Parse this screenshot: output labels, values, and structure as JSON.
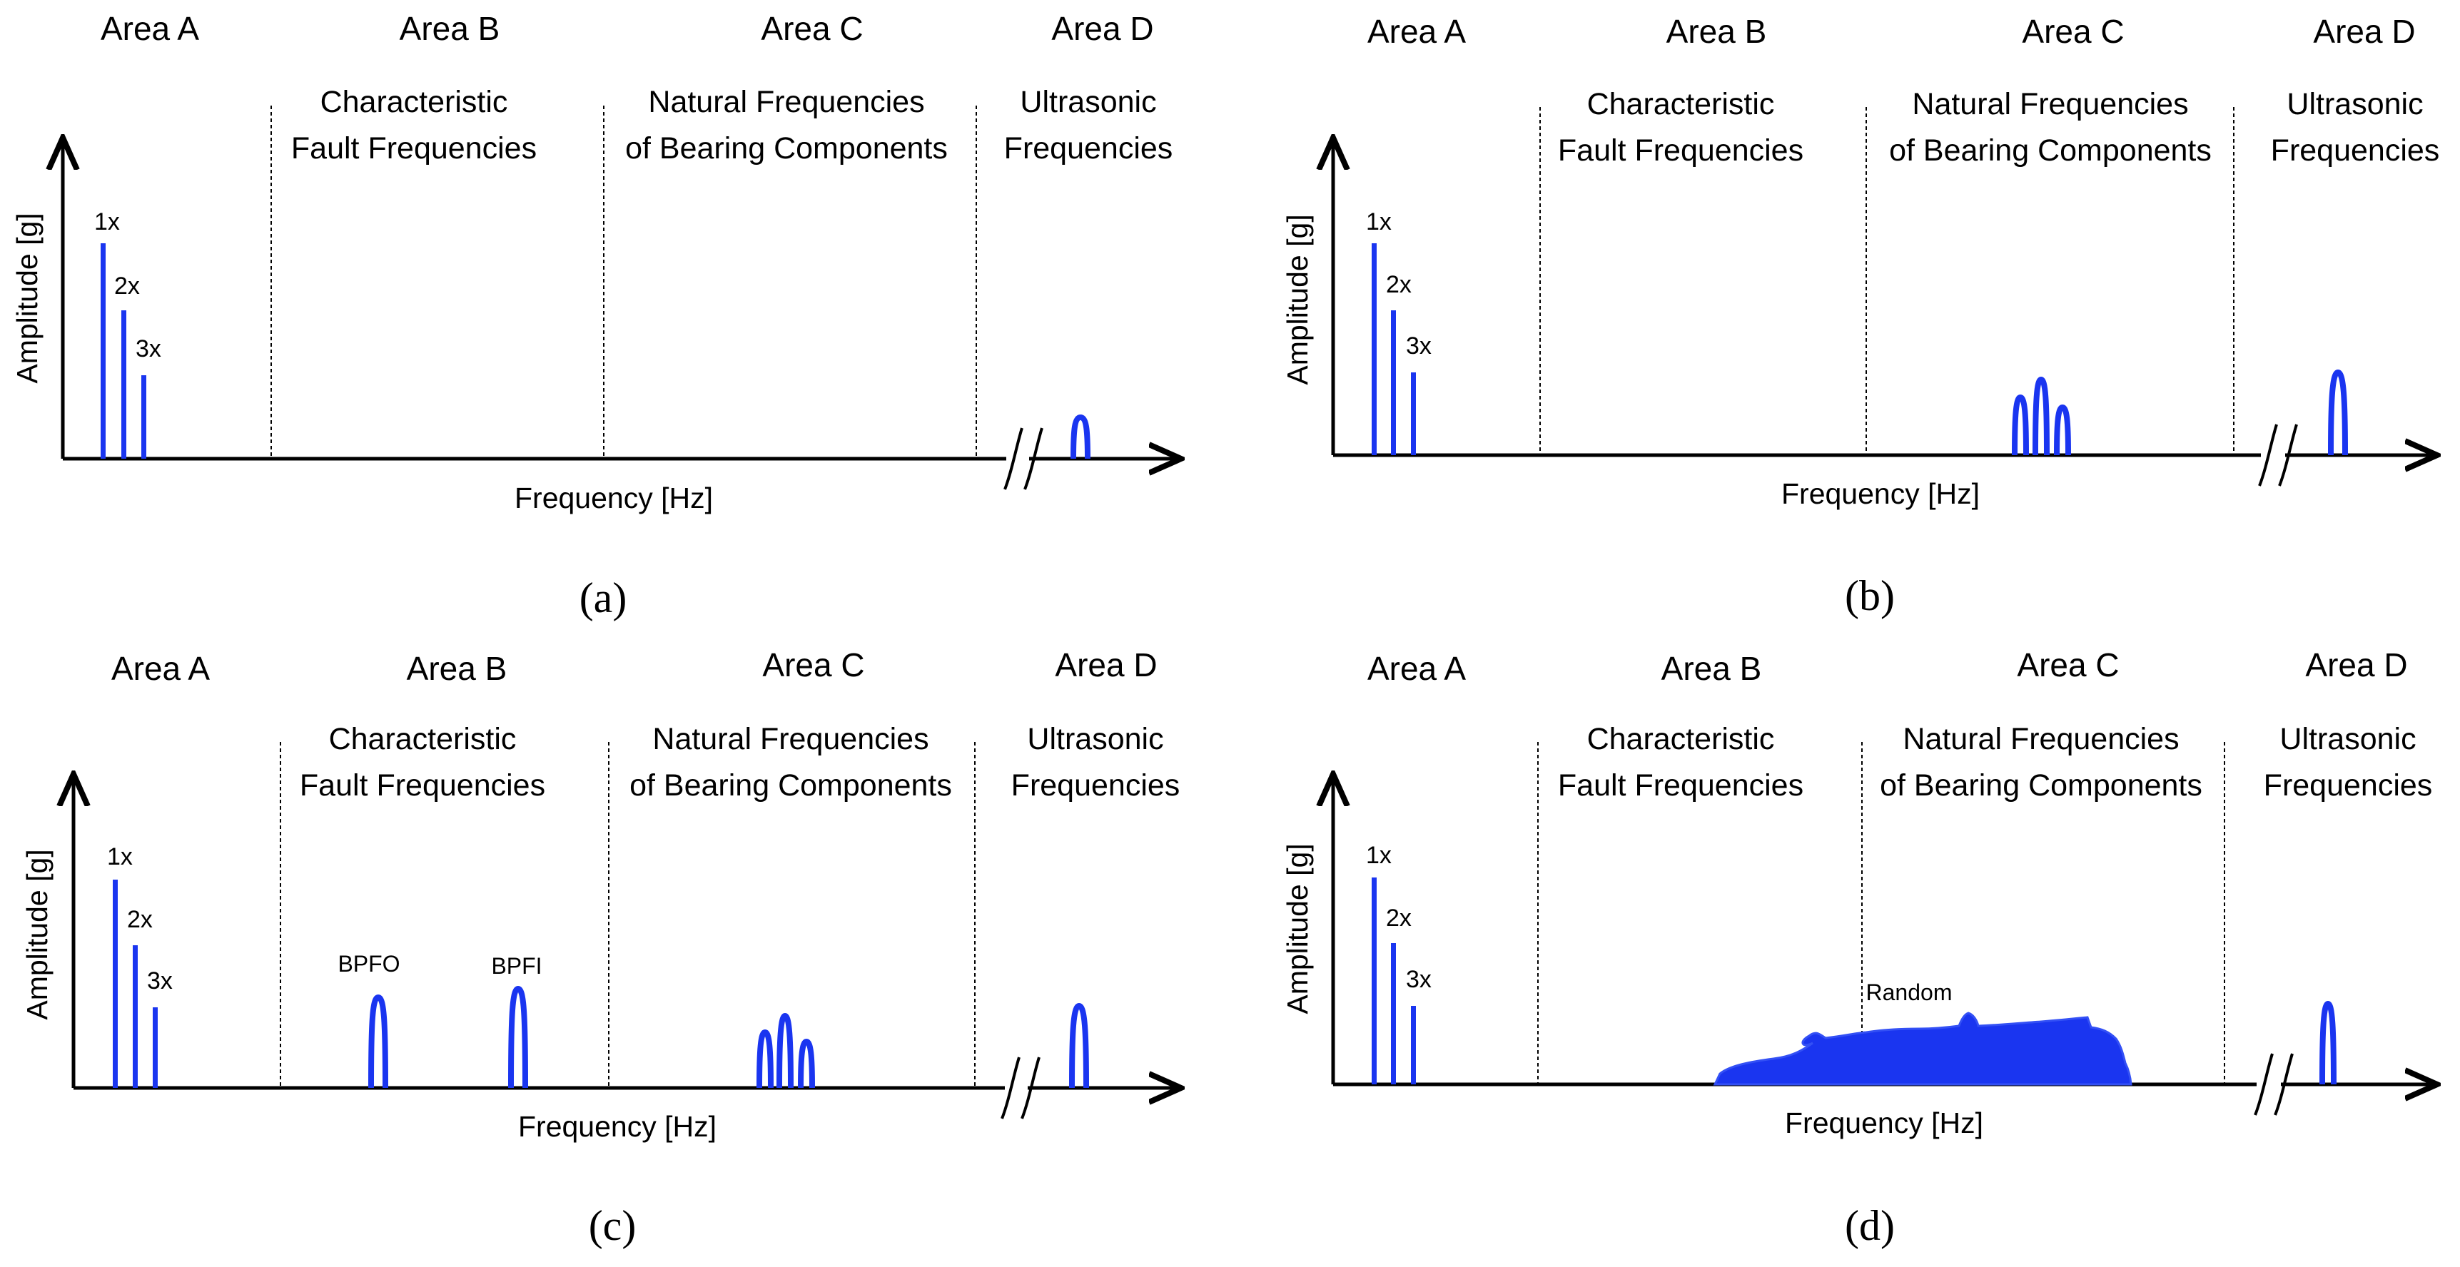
{
  "colors": {
    "accent": "#1a35f0",
    "axis": "#000000"
  },
  "panels": [
    {
      "caption": "(a)",
      "areas": [
        "Area A",
        "Area B",
        "Area C",
        "Area D"
      ],
      "zones": {
        "b": [
          "Characteristic",
          "Fault Frequencies"
        ],
        "c": [
          "Natural Frequencies",
          "of Bearing Components"
        ],
        "d": [
          "Ultrasonic",
          "Frequencies"
        ]
      },
      "ylabel": "Amplitude [g]",
      "xlabel": "Frequency [Hz]",
      "harmonics": [
        "1x",
        "2x",
        "3x"
      ],
      "peak_labels": [],
      "random_label": null
    },
    {
      "caption": "(b)",
      "areas": [
        "Area A",
        "Area B",
        "Area C",
        "Area D"
      ],
      "zones": {
        "b": [
          "Characteristic",
          "Fault Frequencies"
        ],
        "c": [
          "Natural Frequencies",
          "of Bearing Components"
        ],
        "d": [
          "Ultrasonic",
          "Frequencies"
        ]
      },
      "ylabel": "Amplitude [g]",
      "xlabel": "Frequency [Hz]",
      "harmonics": [
        "1x",
        "2x",
        "3x"
      ],
      "peak_labels": [],
      "random_label": null
    },
    {
      "caption": "(c)",
      "areas": [
        "Area A",
        "Area B",
        "Area C",
        "Area D"
      ],
      "zones": {
        "b": [
          "Characteristic",
          "Fault Frequencies"
        ],
        "c": [
          "Natural Frequencies",
          "of Bearing Components"
        ],
        "d": [
          "Ultrasonic",
          "Frequencies"
        ]
      },
      "ylabel": "Amplitude [g]",
      "xlabel": "Frequency [Hz]",
      "harmonics": [
        "1x",
        "2x",
        "3x"
      ],
      "peak_labels": [
        "BPFO",
        "BPFI"
      ],
      "random_label": null
    },
    {
      "caption": "(d)",
      "areas": [
        "Area A",
        "Area B",
        "Area C",
        "Area D"
      ],
      "zones": {
        "b": [
          "Characteristic",
          "Fault Frequencies"
        ],
        "c": [
          "Natural Frequencies",
          "of Bearing Components"
        ],
        "d": [
          "Ultrasonic",
          "Frequencies"
        ]
      },
      "ylabel": "Amplitude [g]",
      "xlabel": "Frequency [Hz]",
      "harmonics": [
        "1x",
        "2x",
        "3x"
      ],
      "peak_labels": [],
      "random_label": "Random"
    }
  ]
}
